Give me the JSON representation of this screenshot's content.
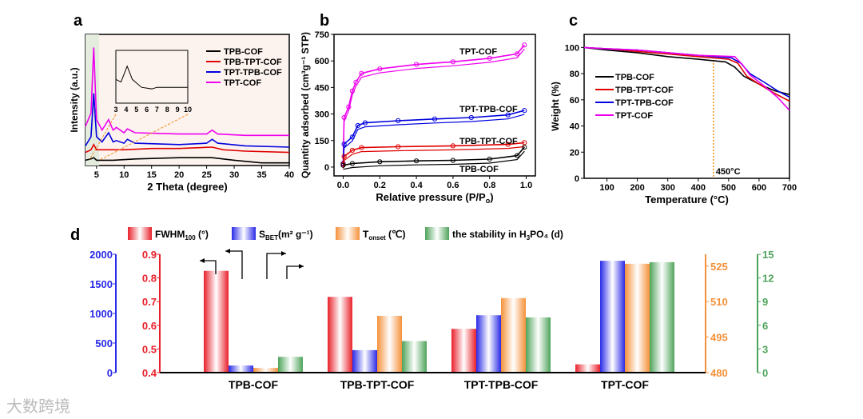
{
  "watermark": "大数跨境",
  "chart_data": [
    {
      "panel": "a",
      "type": "line",
      "xlabel": "2 Theta (degree)",
      "ylabel": "Intensity (a.u.)",
      "xlim": [
        3,
        40
      ],
      "ylim": [
        0,
        100
      ],
      "xticks": [
        5,
        10,
        15,
        20,
        25,
        30,
        35,
        40
      ],
      "series": [
        {
          "name": "TPB-COF",
          "color": "#000000",
          "points": [
            [
              3,
              4
            ],
            [
              4,
              5
            ],
            [
              4.5,
              6
            ],
            [
              5,
              4
            ],
            [
              8,
              4
            ],
            [
              12,
              5
            ],
            [
              20,
              6
            ],
            [
              26,
              6
            ],
            [
              30,
              4
            ],
            [
              35,
              2
            ],
            [
              40,
              2
            ]
          ]
        },
        {
          "name": "TPB-TPT-COF",
          "color": "#e00000",
          "points": [
            [
              3,
              10
            ],
            [
              4,
              12
            ],
            [
              4.5,
              16
            ],
            [
              5,
              12
            ],
            [
              7,
              12
            ],
            [
              10,
              12
            ],
            [
              15,
              13
            ],
            [
              20,
              13
            ],
            [
              26,
              14
            ],
            [
              28,
              12
            ],
            [
              32,
              11
            ],
            [
              40,
              10
            ]
          ]
        },
        {
          "name": "TPT-TPB-COF",
          "color": "#0000e0",
          "points": [
            [
              3,
              15
            ],
            [
              4,
              22
            ],
            [
              4.5,
              55
            ],
            [
              5,
              22
            ],
            [
              6,
              18
            ],
            [
              7.2,
              25
            ],
            [
              8,
              18
            ],
            [
              8.6,
              19
            ],
            [
              10,
              17
            ],
            [
              10.6,
              20
            ],
            [
              12,
              17
            ],
            [
              20,
              16
            ],
            [
              25,
              17
            ],
            [
              26,
              20
            ],
            [
              27,
              17
            ],
            [
              32,
              15
            ],
            [
              40,
              14
            ]
          ]
        },
        {
          "name": "TPT-COF",
          "color": "#ee00ee",
          "points": [
            [
              3,
              30
            ],
            [
              4,
              40
            ],
            [
              4.5,
              90
            ],
            [
              5,
              35
            ],
            [
              6,
              27
            ],
            [
              7.2,
              35
            ],
            [
              8,
              27
            ],
            [
              8.6,
              29
            ],
            [
              10,
              25
            ],
            [
              10.6,
              28
            ],
            [
              12,
              25
            ],
            [
              20,
              24
            ],
            [
              25,
              24
            ],
            [
              26,
              27
            ],
            [
              27,
              24
            ],
            [
              32,
              23
            ],
            [
              40,
              23
            ]
          ]
        }
      ],
      "inset": {
        "xticks": [
          3,
          4,
          5,
          6,
          7,
          8,
          9,
          10
        ],
        "points": [
          [
            3,
            45
          ],
          [
            3.5,
            40
          ],
          [
            4.1,
            70
          ],
          [
            4.6,
            45
          ],
          [
            5.5,
            30
          ],
          [
            6.5,
            27
          ],
          [
            7,
            30
          ],
          [
            8,
            30
          ],
          [
            10,
            30
          ]
        ]
      }
    },
    {
      "panel": "b",
      "type": "scatter-line",
      "xlabel": "Relative pressure (P/P",
      "xlabel_sub": "o",
      "xlabel_end": ")",
      "ylabel": "Quantity adsorbed (cm³g⁻¹ STP)",
      "xlim": [
        -0.05,
        1.05
      ],
      "ylim": [
        -50,
        750
      ],
      "xticks": [
        0.0,
        0.2,
        0.4,
        0.6,
        0.8,
        1.0
      ],
      "yticks": [
        0,
        150,
        300,
        450,
        600,
        750
      ],
      "series": [
        {
          "name": "TPT-COF",
          "color": "#ee00ee",
          "points": [
            [
              0,
              20
            ],
            [
              0.005,
              280
            ],
            [
              0.03,
              340
            ],
            [
              0.05,
              430
            ],
            [
              0.07,
              480
            ],
            [
              0.1,
              530
            ],
            [
              0.2,
              555
            ],
            [
              0.4,
              580
            ],
            [
              0.6,
              595
            ],
            [
              0.8,
              615
            ],
            [
              0.95,
              640
            ],
            [
              0.99,
              690
            ]
          ]
        },
        {
          "name": "TPT-TPB-COF",
          "color": "#0000e0",
          "points": [
            [
              0,
              20
            ],
            [
              0.005,
              130
            ],
            [
              0.05,
              170
            ],
            [
              0.08,
              235
            ],
            [
              0.12,
              250
            ],
            [
              0.3,
              262
            ],
            [
              0.5,
              272
            ],
            [
              0.7,
              280
            ],
            [
              0.9,
              295
            ],
            [
              0.99,
              320
            ]
          ]
        },
        {
          "name": "TPB-TPT-COF",
          "color": "#e00000",
          "points": [
            [
              0,
              15
            ],
            [
              0.005,
              60
            ],
            [
              0.05,
              95
            ],
            [
              0.1,
              110
            ],
            [
              0.3,
              115
            ],
            [
              0.6,
              120
            ],
            [
              0.9,
              128
            ],
            [
              0.99,
              138
            ]
          ]
        },
        {
          "name": "TPB-COF",
          "color": "#000000",
          "points": [
            [
              0,
              10
            ],
            [
              0.05,
              20
            ],
            [
              0.2,
              30
            ],
            [
              0.4,
              35
            ],
            [
              0.6,
              38
            ],
            [
              0.8,
              45
            ],
            [
              0.95,
              65
            ],
            [
              0.99,
              112
            ]
          ]
        }
      ]
    },
    {
      "panel": "c",
      "type": "line",
      "xlabel": "Temperature (°C)",
      "ylabel": "Weight (%)",
      "xlim": [
        25,
        700
      ],
      "ylim": [
        0,
        110
      ],
      "xticks": [
        100,
        200,
        300,
        400,
        500,
        600,
        700
      ],
      "yticks": [
        0,
        20,
        40,
        60,
        80,
        100
      ],
      "annotation": "450°C",
      "series": [
        {
          "name": "TPB-COF",
          "color": "#000000",
          "points": [
            [
              25,
              100
            ],
            [
              100,
              98
            ],
            [
              200,
              96
            ],
            [
              300,
              93
            ],
            [
              400,
              91
            ],
            [
              490,
              89
            ],
            [
              520,
              85
            ],
            [
              550,
              78
            ],
            [
              600,
              72
            ],
            [
              650,
              67
            ],
            [
              700,
              64
            ]
          ]
        },
        {
          "name": "TPB-TPT-COF",
          "color": "#e00000",
          "points": [
            [
              25,
              100
            ],
            [
              100,
              99
            ],
            [
              200,
              97
            ],
            [
              300,
              95
            ],
            [
              400,
              93
            ],
            [
              500,
              91
            ],
            [
              530,
              88
            ],
            [
              560,
              78
            ],
            [
              600,
              72
            ],
            [
              650,
              65
            ],
            [
              700,
              59
            ]
          ]
        },
        {
          "name": "TPT-TPB-COF",
          "color": "#0000e0",
          "points": [
            [
              25,
              100
            ],
            [
              100,
              99
            ],
            [
              200,
              98
            ],
            [
              300,
              96
            ],
            [
              400,
              94
            ],
            [
              510,
              92
            ],
            [
              540,
              88
            ],
            [
              570,
              80
            ],
            [
              620,
              73
            ],
            [
              660,
              67
            ],
            [
              700,
              62
            ]
          ]
        },
        {
          "name": "TPT-COF",
          "color": "#ee00ee",
          "points": [
            [
              25,
              100
            ],
            [
              100,
              99
            ],
            [
              200,
              98
            ],
            [
              300,
              96
            ],
            [
              400,
              94
            ],
            [
              520,
              93
            ],
            [
              545,
              87
            ],
            [
              570,
              79
            ],
            [
              620,
              70
            ],
            [
              660,
              62
            ],
            [
              700,
              52
            ]
          ]
        }
      ]
    },
    {
      "panel": "d",
      "type": "bar",
      "categories": [
        "TPB-COF",
        "TPB-TPT-COF",
        "TPT-TPB-COF",
        "TPT-COF"
      ],
      "series": [
        {
          "name": "FWHM",
          "sub": "100",
          "suffix": " (°)",
          "color": "#e8202a",
          "axis": "left-inner",
          "ylim": [
            0.4,
            0.9
          ],
          "ticks": [
            "0.4",
            "0.5",
            "0.6",
            "0.7",
            "0.8",
            "0.9"
          ],
          "values": [
            0.83,
            0.72,
            0.585,
            0.435
          ]
        },
        {
          "name": "S",
          "sub": "BET",
          "suffix": "(m² g⁻¹)",
          "color": "#2a2ae8",
          "axis": "left-outer",
          "ylim": [
            0,
            2000
          ],
          "ticks": [
            "0",
            "500",
            "1000",
            "1500",
            "2000"
          ],
          "values": [
            120,
            380,
            970,
            1890
          ]
        },
        {
          "name": "T",
          "sub": "onset",
          "suffix": " (℃)",
          "color": "#f5913a",
          "axis": "right-inner",
          "ylim": [
            480,
            530
          ],
          "ticks": [
            "480",
            "495",
            "510",
            "525"
          ],
          "values": [
            482,
            504,
            511.5,
            526
          ]
        },
        {
          "name": "the stability in H",
          "sub": "3",
          "suffix": "PO₄ (d)",
          "color": "#4ea35a",
          "axis": "right-outer",
          "ylim": [
            0,
            15
          ],
          "ticks": [
            "0",
            "3",
            "6",
            "9",
            "12",
            "15"
          ],
          "values": [
            2,
            4,
            7,
            14
          ]
        }
      ]
    }
  ],
  "labels": {
    "a": "a",
    "b": "b",
    "c": "c",
    "d": "d"
  }
}
